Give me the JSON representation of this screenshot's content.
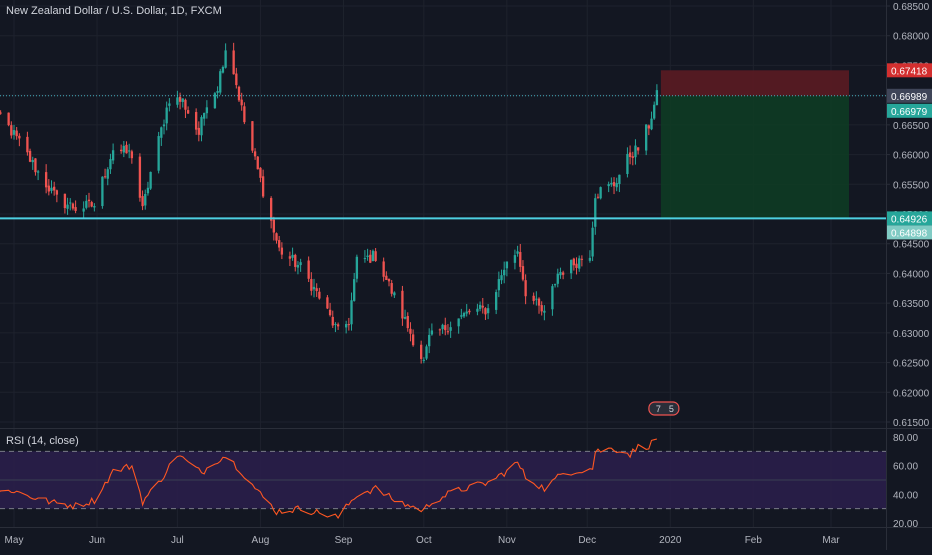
{
  "header": {
    "title": "New Zealand Dollar / U.S. Dollar, 1D, FXCM"
  },
  "rsi_header": {
    "label": "RSI (14, close)"
  },
  "colors": {
    "background": "#131722",
    "up": "#26a69a",
    "down": "#ef5350",
    "grid": "#1e222d",
    "axis_text": "#b2b5be",
    "stop_zone": "#5b1b22",
    "target_zone": "#0e3b24",
    "support_line": "#4dd0e1",
    "rsi_line": "#ff5722",
    "rsi_band": "#2a1e4a"
  },
  "price_badges": [
    {
      "label": "0.67418",
      "color": "#d32f2f",
      "value": 0.67418
    },
    {
      "label": "0.66989",
      "color": "#3f4558",
      "value": 0.66989
    },
    {
      "label": "0.66979",
      "color": "#26a69a",
      "value": 0.66979
    },
    {
      "label": "0.64926",
      "color": "#26a69a",
      "value": 0.64926
    },
    {
      "label": "0.64898",
      "color": "#80cbc4",
      "value": 0.64898
    }
  ],
  "event_icons": {
    "labels": [
      "7",
      "5"
    ]
  },
  "chart_data": [
    {
      "type": "candlestick",
      "title": "New Zealand Dollar / U.S. Dollar, 1D, FXCM",
      "ylim": [
        0.615,
        0.685
      ],
      "y_ticks": [
        "0.68500",
        "0.68000",
        "0.67500",
        "0.67000",
        "0.66500",
        "0.66000",
        "0.65500",
        "0.65000",
        "0.64500",
        "0.64000",
        "0.63500",
        "0.63000",
        "0.62500",
        "0.62000",
        "0.61500"
      ],
      "x_ticks": [
        "May",
        "Jun",
        "Jul",
        "Aug",
        "Sep",
        "Oct",
        "Nov",
        "Dec",
        "2020",
        "Feb",
        "Mar"
      ],
      "x_tick_dates": [
        "2019-05-01",
        "2019-06-01",
        "2019-07-01",
        "2019-08-01",
        "2019-09-01",
        "2019-10-01",
        "2019-11-01",
        "2019-12-01",
        "2020-01-01",
        "2020-02-01",
        "2020-03-01"
      ],
      "start_date": "2019-04-22",
      "end_date": "2019-12-27",
      "close_path": [
        [
          "2019-04-22",
          0.664
        ],
        [
          "2019-04-26",
          0.6665
        ],
        [
          "2019-05-03",
          0.662
        ],
        [
          "2019-05-10",
          0.657
        ],
        [
          "2019-05-17",
          0.6525
        ],
        [
          "2019-05-24",
          0.651
        ],
        [
          "2019-05-31",
          0.6515
        ],
        [
          "2019-06-07",
          0.661
        ],
        [
          "2019-06-14",
          0.66
        ],
        [
          "2019-06-18",
          0.6505
        ],
        [
          "2019-06-21",
          0.657
        ],
        [
          "2019-06-28",
          0.6695
        ],
        [
          "2019-07-03",
          0.669
        ],
        [
          "2019-07-09",
          0.6635
        ],
        [
          "2019-07-12",
          0.669
        ],
        [
          "2019-07-16",
          0.6715
        ],
        [
          "2019-07-19",
          0.678
        ],
        [
          "2019-07-22",
          0.674
        ],
        [
          "2019-07-26",
          0.6655
        ],
        [
          "2019-08-02",
          0.654
        ],
        [
          "2019-08-06",
          0.647
        ],
        [
          "2019-08-08",
          0.644
        ],
        [
          "2019-08-16",
          0.641
        ],
        [
          "2019-08-23",
          0.636
        ],
        [
          "2019-08-30",
          0.63
        ],
        [
          "2019-09-03",
          0.632
        ],
        [
          "2019-09-06",
          0.642
        ],
        [
          "2019-09-13",
          0.643
        ],
        [
          "2019-09-20",
          0.636
        ],
        [
          "2019-09-27",
          0.629
        ],
        [
          "2019-10-01",
          0.625
        ],
        [
          "2019-10-03",
          0.629
        ],
        [
          "2019-10-11",
          0.6315
        ],
        [
          "2019-10-18",
          0.6335
        ],
        [
          "2019-10-25",
          0.634
        ],
        [
          "2019-10-31",
          0.641
        ],
        [
          "2019-11-05",
          0.644
        ],
        [
          "2019-11-08",
          0.637
        ],
        [
          "2019-11-15",
          0.633
        ],
        [
          "2019-11-20",
          0.64
        ],
        [
          "2019-11-27",
          0.642
        ],
        [
          "2019-12-02",
          0.6435
        ],
        [
          "2019-12-04",
          0.6535
        ],
        [
          "2019-12-11",
          0.655
        ],
        [
          "2019-12-17",
          0.66
        ],
        [
          "2019-12-20",
          0.661
        ],
        [
          "2019-12-24",
          0.665
        ],
        [
          "2019-12-27",
          0.6698
        ]
      ],
      "horizontal_line": 0.64926,
      "position": {
        "start_date": "2019-12-27",
        "end_date": "2020-03-01",
        "entry": 0.66989,
        "stop": 0.67418,
        "target": 0.64926
      }
    },
    {
      "type": "line",
      "title": "RSI (14, close)",
      "ylim": [
        20,
        80
      ],
      "y_ticks": [
        "80.00",
        "60.00",
        "40.00",
        "20.00"
      ],
      "upper_band": 70,
      "lower_band": 30,
      "series": [
        {
          "name": "RSI (14, close)",
          "values": [
            [
              "2019-04-22",
              40
            ],
            [
              "2019-04-30",
              43
            ],
            [
              "2019-05-08",
              38
            ],
            [
              "2019-05-16",
              34
            ],
            [
              "2019-05-24",
              32
            ],
            [
              "2019-05-31",
              36
            ],
            [
              "2019-06-07",
              56
            ],
            [
              "2019-06-14",
              60
            ],
            [
              "2019-06-18",
              35
            ],
            [
              "2019-06-24",
              48
            ],
            [
              "2019-07-01",
              68
            ],
            [
              "2019-07-05",
              62
            ],
            [
              "2019-07-10",
              55
            ],
            [
              "2019-07-15",
              63
            ],
            [
              "2019-07-19",
              67
            ],
            [
              "2019-07-24",
              58
            ],
            [
              "2019-07-31",
              42
            ],
            [
              "2019-08-07",
              28
            ],
            [
              "2019-08-16",
              30
            ],
            [
              "2019-08-23",
              27
            ],
            [
              "2019-08-30",
              24
            ],
            [
              "2019-09-06",
              40
            ],
            [
              "2019-09-13",
              44
            ],
            [
              "2019-09-20",
              36
            ],
            [
              "2019-09-27",
              31
            ],
            [
              "2019-10-01",
              29
            ],
            [
              "2019-10-04",
              35
            ],
            [
              "2019-10-11",
              41
            ],
            [
              "2019-10-18",
              45
            ],
            [
              "2019-10-25",
              48
            ],
            [
              "2019-10-31",
              55
            ],
            [
              "2019-11-05",
              62
            ],
            [
              "2019-11-08",
              52
            ],
            [
              "2019-11-15",
              44
            ],
            [
              "2019-11-22",
              55
            ],
            [
              "2019-11-29",
              57
            ],
            [
              "2019-12-03",
              58
            ],
            [
              "2019-12-04",
              70
            ],
            [
              "2019-12-11",
              72
            ],
            [
              "2019-12-17",
              68
            ],
            [
              "2019-12-20",
              73
            ],
            [
              "2019-12-24",
              74
            ],
            [
              "2019-12-27",
              79
            ]
          ]
        }
      ]
    }
  ]
}
